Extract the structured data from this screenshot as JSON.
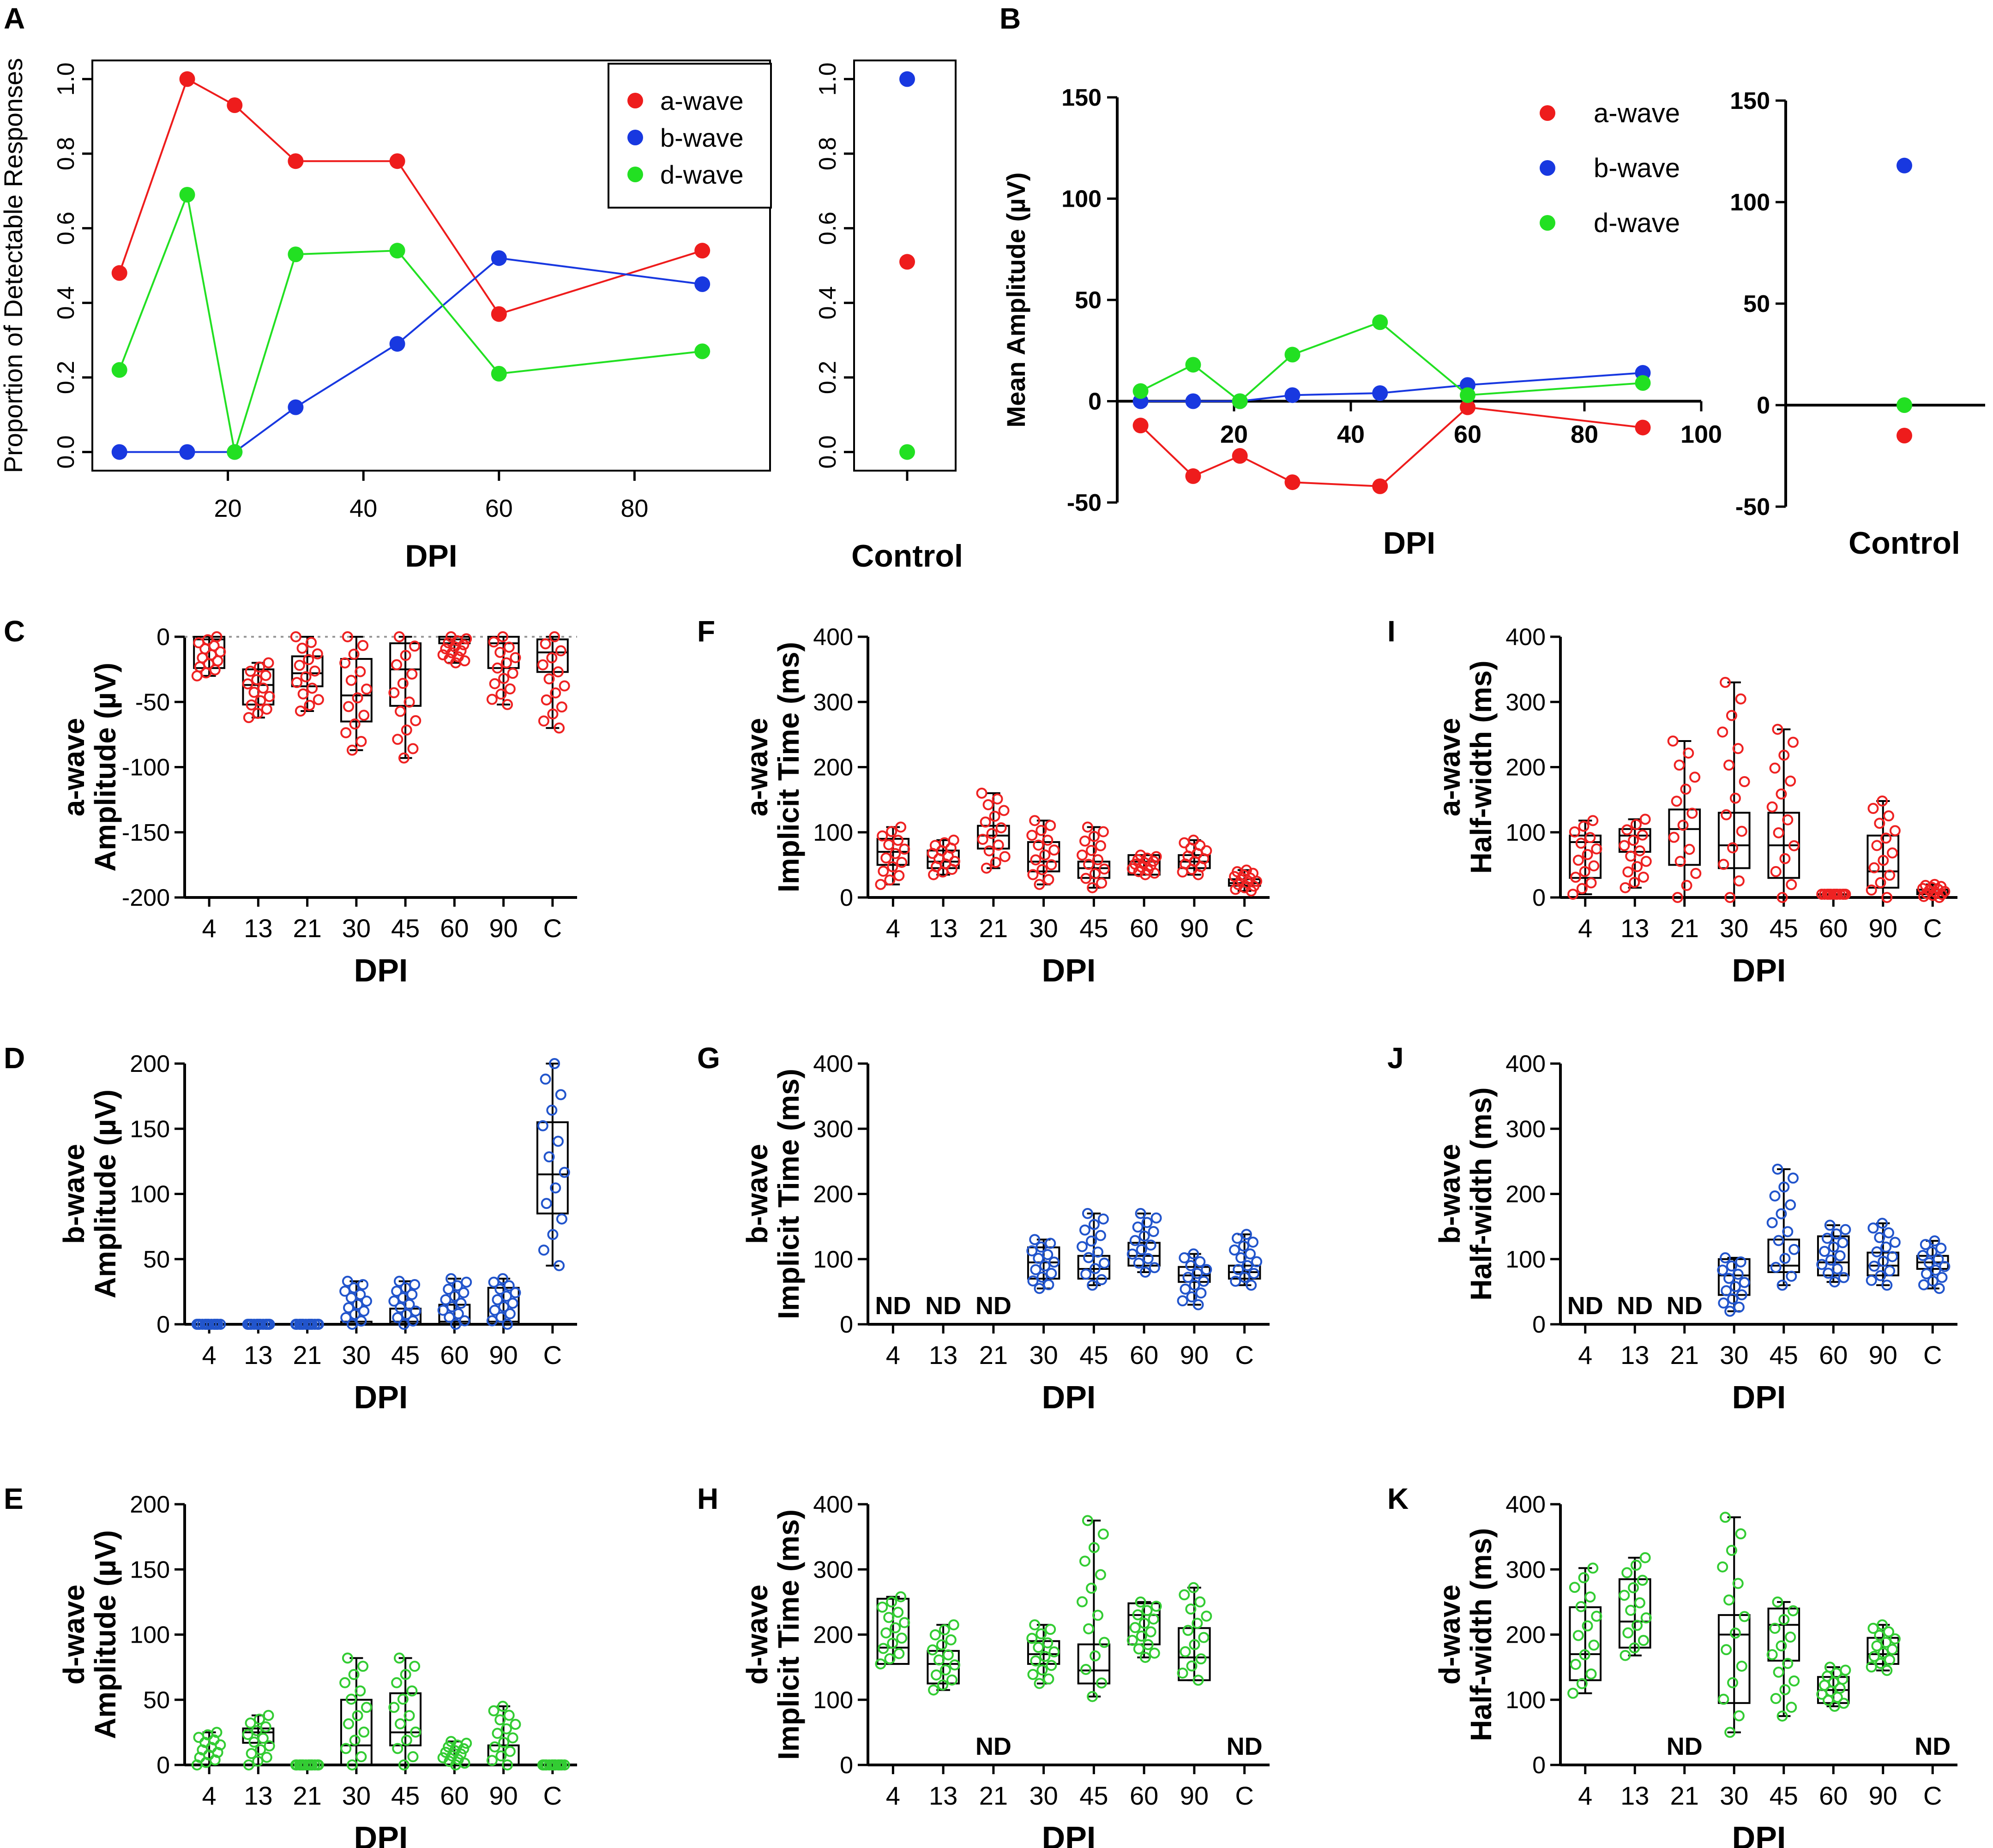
{
  "colors": {
    "a": "#ee1c1c",
    "b": "#1838e0",
    "d": "#22e022",
    "ba": "#ee2222",
    "bb": "#2255cc",
    "bd": "#33cc33",
    "axis": "#000000"
  },
  "chart_data": [
    {
      "id": "A",
      "type": "line",
      "panel_label": "A",
      "ylabel": "Proportion of Detectable Responses",
      "xlabel": "DPI",
      "ylim": [
        -0.05,
        1.05
      ],
      "xlim": [
        0,
        100
      ],
      "xticks": [
        "20",
        "40",
        "60",
        "80"
      ],
      "yticks": [
        "0.0",
        "0.2",
        "0.4",
        "0.6",
        "0.8",
        "1.0"
      ],
      "legend": [
        "a-wave",
        "b-wave",
        "d-wave"
      ],
      "series": [
        {
          "name": "a-wave",
          "x": [
            4,
            14,
            21,
            30,
            45,
            60,
            90
          ],
          "y": [
            0.48,
            1.0,
            0.93,
            0.78,
            0.78,
            0.37,
            0.54
          ]
        },
        {
          "name": "b-wave",
          "x": [
            4,
            14,
            21,
            30,
            45,
            60,
            90
          ],
          "y": [
            0.0,
            0.0,
            0.0,
            0.12,
            0.29,
            0.52,
            0.45
          ]
        },
        {
          "name": "d-wave",
          "x": [
            4,
            14,
            21,
            30,
            45,
            60,
            90
          ],
          "y": [
            0.22,
            0.69,
            0.0,
            0.53,
            0.54,
            0.21,
            0.27
          ]
        }
      ],
      "control": {
        "xlabel": "Control",
        "yticks": [
          "0.0",
          "0.2",
          "0.4",
          "0.6",
          "0.8",
          "1.0"
        ],
        "a": 0.51,
        "b": 1.0,
        "d": 0.0
      }
    },
    {
      "id": "B",
      "type": "line",
      "panel_label": "B",
      "ylabel": "Mean Amplitude (µV)",
      "xlabel": "DPI",
      "ylim": [
        -50,
        150
      ],
      "xlim": [
        0,
        100
      ],
      "xticks": [
        "20",
        "40",
        "60",
        "80",
        "100"
      ],
      "yticks": [
        "-50",
        "0",
        "50",
        "100",
        "150"
      ],
      "legend": [
        "a-wave",
        "b-wave",
        "d-wave"
      ],
      "series": [
        {
          "name": "a-wave",
          "x": [
            4,
            13,
            21,
            30,
            45,
            60,
            90
          ],
          "y": [
            -12,
            -37,
            -27,
            -40,
            -42,
            -3,
            -13
          ]
        },
        {
          "name": "b-wave",
          "x": [
            4,
            13,
            21,
            30,
            45,
            60,
            90
          ],
          "y": [
            0,
            0,
            0,
            3,
            4,
            8,
            14
          ]
        },
        {
          "name": "d-wave",
          "x": [
            4,
            13,
            21,
            30,
            45,
            60,
            90
          ],
          "y": [
            5,
            18,
            0,
            23,
            39,
            3,
            9
          ]
        }
      ],
      "control": {
        "xlabel": "Control",
        "yticks": [
          "-50",
          "0",
          "50",
          "100",
          "150"
        ],
        "a": -15,
        "b": 118,
        "d": 0
      }
    },
    {
      "id": "C",
      "type": "box",
      "panel_label": "C",
      "wave": "a-wave",
      "ylabel": "Amplitude (µV)",
      "xlabel": "DPI",
      "ylim": [
        -200,
        0
      ],
      "yticks": [
        "-200",
        "-150",
        "-100",
        "-50",
        "0"
      ],
      "categories": [
        "4",
        "13",
        "21",
        "30",
        "45",
        "60",
        "90",
        "C"
      ],
      "color": "ba",
      "zero_line": true,
      "boxes": [
        [
          -30,
          -24,
          -2,
          0,
          0
        ],
        [
          -62,
          -52,
          -37,
          -25,
          -20
        ],
        [
          -57,
          -38,
          -28,
          -15,
          0
        ],
        [
          -87,
          -65,
          -45,
          -17,
          0
        ],
        [
          -93,
          -53,
          -25,
          -5,
          0
        ],
        [
          -20,
          -5,
          -2,
          0,
          0
        ],
        [
          -52,
          -24,
          -5,
          0,
          0
        ],
        [
          -70,
          -27,
          -12,
          -2,
          0
        ]
      ]
    },
    {
      "id": "D",
      "type": "box",
      "panel_label": "D",
      "wave": "b-wave",
      "ylabel": "Amplitude (µV)",
      "xlabel": "DPI",
      "ylim": [
        0,
        200
      ],
      "yticks": [
        "0",
        "50",
        "100",
        "150",
        "200"
      ],
      "categories": [
        "4",
        "13",
        "21",
        "30",
        "45",
        "60",
        "90",
        "C"
      ],
      "color": "bb",
      "boxes": [
        [
          0,
          0,
          0,
          0,
          0
        ],
        [
          0,
          0,
          0,
          0,
          0
        ],
        [
          0,
          0,
          0,
          0,
          0
        ],
        [
          0,
          0,
          0,
          2,
          33
        ],
        [
          0,
          0,
          2,
          12,
          33
        ],
        [
          0,
          0,
          2,
          15,
          35
        ],
        [
          0,
          0,
          2,
          28,
          35
        ],
        [
          45,
          85,
          115,
          155,
          200
        ]
      ]
    },
    {
      "id": "E",
      "type": "box",
      "panel_label": "E",
      "wave": "d-wave",
      "ylabel": "Amplitude (µV)",
      "xlabel": "DPI",
      "ylim": [
        0,
        200
      ],
      "yticks": [
        "0",
        "50",
        "100",
        "150",
        "200"
      ],
      "categories": [
        "4",
        "13",
        "21",
        "30",
        "45",
        "60",
        "90",
        "C"
      ],
      "color": "bd",
      "boxes": [
        [
          0,
          0,
          0,
          0,
          25
        ],
        [
          0,
          17,
          25,
          28,
          38
        ],
        [
          0,
          0,
          0,
          0,
          0
        ],
        [
          0,
          0,
          15,
          50,
          82
        ],
        [
          0,
          15,
          25,
          55,
          82
        ],
        [
          0,
          0,
          0,
          0,
          18
        ],
        [
          0,
          0,
          0,
          15,
          45
        ],
        [
          0,
          0,
          0,
          0,
          0
        ]
      ]
    },
    {
      "id": "F",
      "type": "box",
      "panel_label": "F",
      "wave": "a-wave",
      "ylabel": "Implicit Time (ms)",
      "xlabel": "DPI",
      "ylim": [
        0,
        400
      ],
      "yticks": [
        "0",
        "100",
        "200",
        "300",
        "400"
      ],
      "categories": [
        "4",
        "13",
        "21",
        "30",
        "45",
        "60",
        "90",
        "C"
      ],
      "color": "ba",
      "boxes": [
        [
          20,
          50,
          70,
          90,
          108
        ],
        [
          35,
          45,
          55,
          72,
          88
        ],
        [
          45,
          75,
          95,
          110,
          160
        ],
        [
          20,
          40,
          55,
          85,
          118
        ],
        [
          15,
          30,
          45,
          55,
          108
        ],
        [
          35,
          35,
          55,
          65,
          65
        ],
        [
          35,
          45,
          55,
          65,
          88
        ],
        [
          10,
          18,
          22,
          28,
          42
        ]
      ]
    },
    {
      "id": "G",
      "type": "box",
      "panel_label": "G",
      "wave": "b-wave",
      "ylabel": "Implicit Time (ms)",
      "xlabel": "DPI",
      "ylim": [
        0,
        400
      ],
      "yticks": [
        "0",
        "100",
        "200",
        "300",
        "400"
      ],
      "categories": [
        "4",
        "13",
        "21",
        "30",
        "45",
        "60",
        "90",
        "C"
      ],
      "color": "bb",
      "boxes": [
        null,
        null,
        null,
        [
          55,
          70,
          95,
          118,
          130
        ],
        [
          60,
          70,
          85,
          105,
          170
        ],
        [
          80,
          90,
          105,
          125,
          170
        ],
        [
          30,
          65,
          75,
          88,
          108
        ],
        [
          60,
          70,
          80,
          90,
          138
        ]
      ],
      "nd": [
        "ND",
        "ND",
        "ND",
        "",
        "",
        "",
        "",
        ""
      ]
    },
    {
      "id": "H",
      "type": "box",
      "panel_label": "H",
      "wave": "d-wave",
      "ylabel": "Implicit Time (ms)",
      "xlabel": "DPI",
      "ylim": [
        0,
        400
      ],
      "yticks": [
        "0",
        "100",
        "200",
        "300",
        "400"
      ],
      "categories": [
        "4",
        "13",
        "21",
        "30",
        "45",
        "60",
        "90",
        "C"
      ],
      "color": "bd",
      "boxes": [
        [
          155,
          155,
          180,
          255,
          258
        ],
        [
          115,
          125,
          155,
          175,
          215
        ],
        null,
        [
          125,
          155,
          170,
          190,
          215
        ],
        [
          105,
          125,
          145,
          185,
          375
        ],
        [
          165,
          185,
          230,
          248,
          250
        ],
        [
          130,
          130,
          165,
          210,
          272
        ],
        null
      ],
      "nd": [
        "",
        "",
        "ND",
        "",
        "",
        "",
        "",
        "ND"
      ]
    },
    {
      "id": "I",
      "type": "box",
      "panel_label": "I",
      "wave": "a-wave",
      "ylabel": "Half-width (ms)",
      "xlabel": "DPI",
      "ylim": [
        0,
        400
      ],
      "yticks": [
        "0",
        "100",
        "200",
        "300",
        "400"
      ],
      "categories": [
        "4",
        "13",
        "21",
        "30",
        "45",
        "60",
        "90",
        "C"
      ],
      "color": "ba",
      "boxes": [
        [
          5,
          30,
          85,
          95,
          118
        ],
        [
          15,
          70,
          95,
          105,
          120
        ],
        [
          0,
          50,
          105,
          135,
          240
        ],
        [
          0,
          45,
          80,
          130,
          330
        ],
        [
          0,
          30,
          80,
          130,
          258
        ],
        [
          5,
          5,
          5,
          5,
          5
        ],
        [
          0,
          15,
          40,
          95,
          148
        ],
        [
          0,
          5,
          8,
          12,
          20
        ]
      ]
    },
    {
      "id": "J",
      "type": "box",
      "panel_label": "J",
      "wave": "b-wave",
      "ylabel": "Half-width (ms)",
      "xlabel": "DPI",
      "ylim": [
        0,
        400
      ],
      "yticks": [
        "0",
        "100",
        "200",
        "300",
        "400"
      ],
      "categories": [
        "4",
        "13",
        "21",
        "30",
        "45",
        "60",
        "90",
        "C"
      ],
      "color": "bb",
      "boxes": [
        null,
        null,
        null,
        [
          20,
          45,
          75,
          100,
          102
        ],
        [
          60,
          80,
          90,
          130,
          238
        ],
        [
          65,
          75,
          95,
          135,
          152
        ],
        [
          60,
          75,
          90,
          110,
          155
        ],
        [
          55,
          85,
          95,
          105,
          128
        ]
      ],
      "nd": [
        "ND",
        "ND",
        "ND",
        "",
        "",
        "",
        "",
        ""
      ]
    },
    {
      "id": "K",
      "type": "box",
      "panel_label": "K",
      "wave": "d-wave",
      "ylabel": "Half-width (ms)",
      "xlabel": "DPI",
      "ylim": [
        0,
        400
      ],
      "yticks": [
        "0",
        "100",
        "200",
        "300",
        "400"
      ],
      "categories": [
        "4",
        "13",
        "21",
        "30",
        "45",
        "60",
        "90",
        "C"
      ],
      "color": "bd",
      "boxes": [
        [
          110,
          130,
          170,
          242,
          302
        ],
        [
          168,
          180,
          220,
          285,
          318
        ],
        null,
        [
          50,
          95,
          200,
          230,
          380
        ],
        [
          75,
          160,
          215,
          240,
          250
        ],
        [
          90,
          95,
          115,
          135,
          150
        ],
        [
          145,
          155,
          170,
          195,
          215
        ],
        null
      ],
      "nd": [
        "",
        "",
        "ND",
        "",
        "",
        "",
        "",
        "ND"
      ]
    }
  ]
}
